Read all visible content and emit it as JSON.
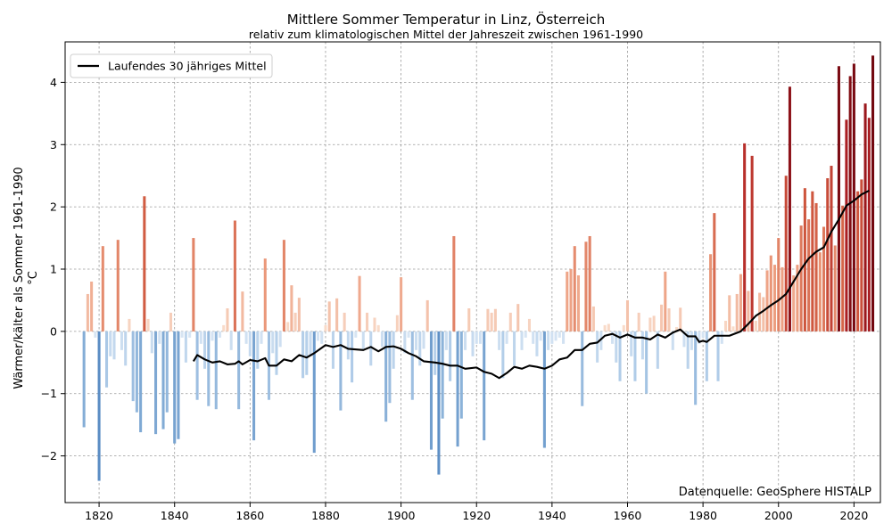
{
  "chart_data": {
    "type": "bar",
    "title": "Mittlere Sommer Temperatur in Linz, Österreich",
    "subtitle": "relativ zum klimatologischen Mittel der Jahreszeit zwischen 1961-1990",
    "xlabel": "",
    "ylabel": "Wärmer/kälter als Sommer 1961-1990",
    "yunit": "°C",
    "xlim": [
      1811,
      2027
    ],
    "ylim": [
      -2.75,
      4.65
    ],
    "xticks": [
      "1820",
      "1840",
      "1860",
      "1880",
      "1900",
      "1920",
      "1940",
      "1960",
      "1980",
      "2000",
      "2020"
    ],
    "yticks": [
      "−2",
      "−1",
      "0",
      "1",
      "2",
      "3",
      "4"
    ],
    "grid": true,
    "legend": {
      "position": "top-left",
      "entries": [
        "Laufendes 30 jähriges Mittel"
      ]
    },
    "annotation": "Datenquelle: GeoSphere HISTALP",
    "bars": {
      "name": "Sommer-Anomalie",
      "start_year": 1816,
      "values": [
        -1.54,
        0.6,
        0.8,
        -0.1,
        -2.4,
        1.37,
        -0.9,
        -0.4,
        -0.45,
        1.47,
        -0.3,
        -0.55,
        0.2,
        -1.12,
        -1.3,
        -1.62,
        2.17,
        0.2,
        -0.35,
        -1.65,
        -0.2,
        -1.57,
        -1.3,
        0.3,
        -1.8,
        -1.73,
        -0.1,
        -0.5,
        -0.1,
        1.5,
        -1.1,
        -0.2,
        -0.6,
        -1.2,
        -0.15,
        -1.25,
        -0.1,
        0.1,
        0.37,
        -0.3,
        1.78,
        -1.25,
        0.64,
        -0.2,
        -0.4,
        -1.75,
        -0.6,
        -0.2,
        1.17,
        -1.1,
        -0.35,
        -0.7,
        -0.25,
        1.47,
        0.15,
        0.74,
        0.3,
        0.54,
        -0.75,
        -0.7,
        -0.4,
        -1.95,
        -0.15,
        -0.2,
        0.1,
        0.48,
        -0.6,
        0.53,
        -1.27,
        0.3,
        -0.45,
        -0.82,
        -0.1,
        0.89,
        -0.3,
        0.3,
        -0.55,
        0.22,
        0.1,
        -0.25,
        -1.45,
        -1.15,
        -0.6,
        0.26,
        0.87,
        -0.35,
        -0.1,
        -1.1,
        -0.3,
        -0.55,
        -0.28,
        0.5,
        -1.9,
        -0.7,
        -2.3,
        -1.4,
        -0.3,
        -0.8,
        1.53,
        -1.85,
        -1.4,
        -0.3,
        0.37,
        -0.4,
        -0.2,
        -0.2,
        -1.75,
        0.36,
        0.3,
        0.36,
        -0.3,
        -0.75,
        -0.2,
        0.3,
        -0.55,
        0.44,
        -0.3,
        -0.1,
        0.2,
        -0.2,
        -0.4,
        -0.15,
        -1.87,
        -0.3,
        -0.2,
        -0.15,
        -0.1,
        -0.2,
        0.96,
        1.0,
        1.37,
        0.9,
        -1.2,
        1.44,
        1.53,
        0.4,
        -0.5,
        -0.3,
        0.1,
        0.12,
        -0.2,
        -0.5,
        -0.8,
        0.1,
        0.5,
        -0.4,
        -0.8,
        0.3,
        -0.45,
        -1.0,
        0.22,
        0.25,
        -0.6,
        0.43,
        0.96,
        0.37,
        -0.3,
        0.07,
        0.38,
        -0.25,
        -0.6,
        -0.3,
        -1.18,
        -0.2,
        -0.1,
        -0.8,
        1.24,
        1.9,
        -0.8,
        -0.2,
        0.17,
        0.58,
        0.08,
        0.6,
        0.92,
        3.02,
        0.65,
        2.82,
        0.17,
        0.62,
        0.55,
        0.98,
        1.22,
        1.07,
        1.5,
        1.03,
        2.5,
        3.93,
        0.9,
        1.07,
        1.7,
        2.3,
        1.8,
        2.25,
        2.06,
        1.27,
        1.68,
        2.46,
        2.66,
        1.38,
        4.26,
        2.02,
        3.4,
        4.1,
        4.3,
        2.25,
        2.44,
        3.66,
        3.43,
        4.43
      ]
    },
    "series": [
      {
        "name": "Laufendes 30 jähriges Mittel",
        "x": [
          1845,
          1846,
          1848,
          1850,
          1852,
          1854,
          1856,
          1857,
          1858,
          1860,
          1862,
          1864,
          1865,
          1867,
          1869,
          1871,
          1873,
          1875,
          1877,
          1880,
          1882,
          1884,
          1886,
          1890,
          1892,
          1894,
          1896,
          1898,
          1900,
          1902,
          1904,
          1906,
          1909,
          1911,
          1913,
          1915,
          1917,
          1920,
          1922,
          1924,
          1926,
          1928,
          1930,
          1932,
          1934,
          1936,
          1938,
          1940,
          1942,
          1944,
          1946,
          1948,
          1950,
          1952,
          1954,
          1956,
          1958,
          1960,
          1962,
          1964,
          1966,
          1968,
          1970,
          1972,
          1974,
          1976,
          1978,
          1979,
          1980,
          1981,
          1983,
          1985,
          1987,
          1990,
          1992,
          1994,
          1996,
          1998,
          2000,
          2002,
          2004,
          2006,
          2008,
          2010,
          2012,
          2014,
          2016,
          2018,
          2020,
          2022,
          2024
        ],
        "values": [
          -0.48,
          -0.38,
          -0.45,
          -0.5,
          -0.48,
          -0.53,
          -0.52,
          -0.48,
          -0.53,
          -0.46,
          -0.48,
          -0.43,
          -0.55,
          -0.55,
          -0.45,
          -0.48,
          -0.38,
          -0.42,
          -0.35,
          -0.22,
          -0.25,
          -0.22,
          -0.28,
          -0.3,
          -0.25,
          -0.32,
          -0.25,
          -0.24,
          -0.28,
          -0.35,
          -0.4,
          -0.48,
          -0.5,
          -0.52,
          -0.55,
          -0.55,
          -0.6,
          -0.58,
          -0.65,
          -0.68,
          -0.75,
          -0.67,
          -0.57,
          -0.6,
          -0.55,
          -0.57,
          -0.6,
          -0.55,
          -0.45,
          -0.42,
          -0.3,
          -0.3,
          -0.2,
          -0.18,
          -0.07,
          -0.04,
          -0.1,
          -0.05,
          -0.1,
          -0.1,
          -0.13,
          -0.05,
          -0.1,
          -0.02,
          0.03,
          -0.08,
          -0.08,
          -0.17,
          -0.15,
          -0.17,
          -0.07,
          -0.07,
          -0.07,
          0.0,
          0.12,
          0.25,
          0.33,
          0.42,
          0.5,
          0.6,
          0.8,
          1.0,
          1.17,
          1.28,
          1.35,
          1.6,
          1.8,
          2.02,
          2.1,
          2.2,
          2.26
        ]
      }
    ]
  }
}
